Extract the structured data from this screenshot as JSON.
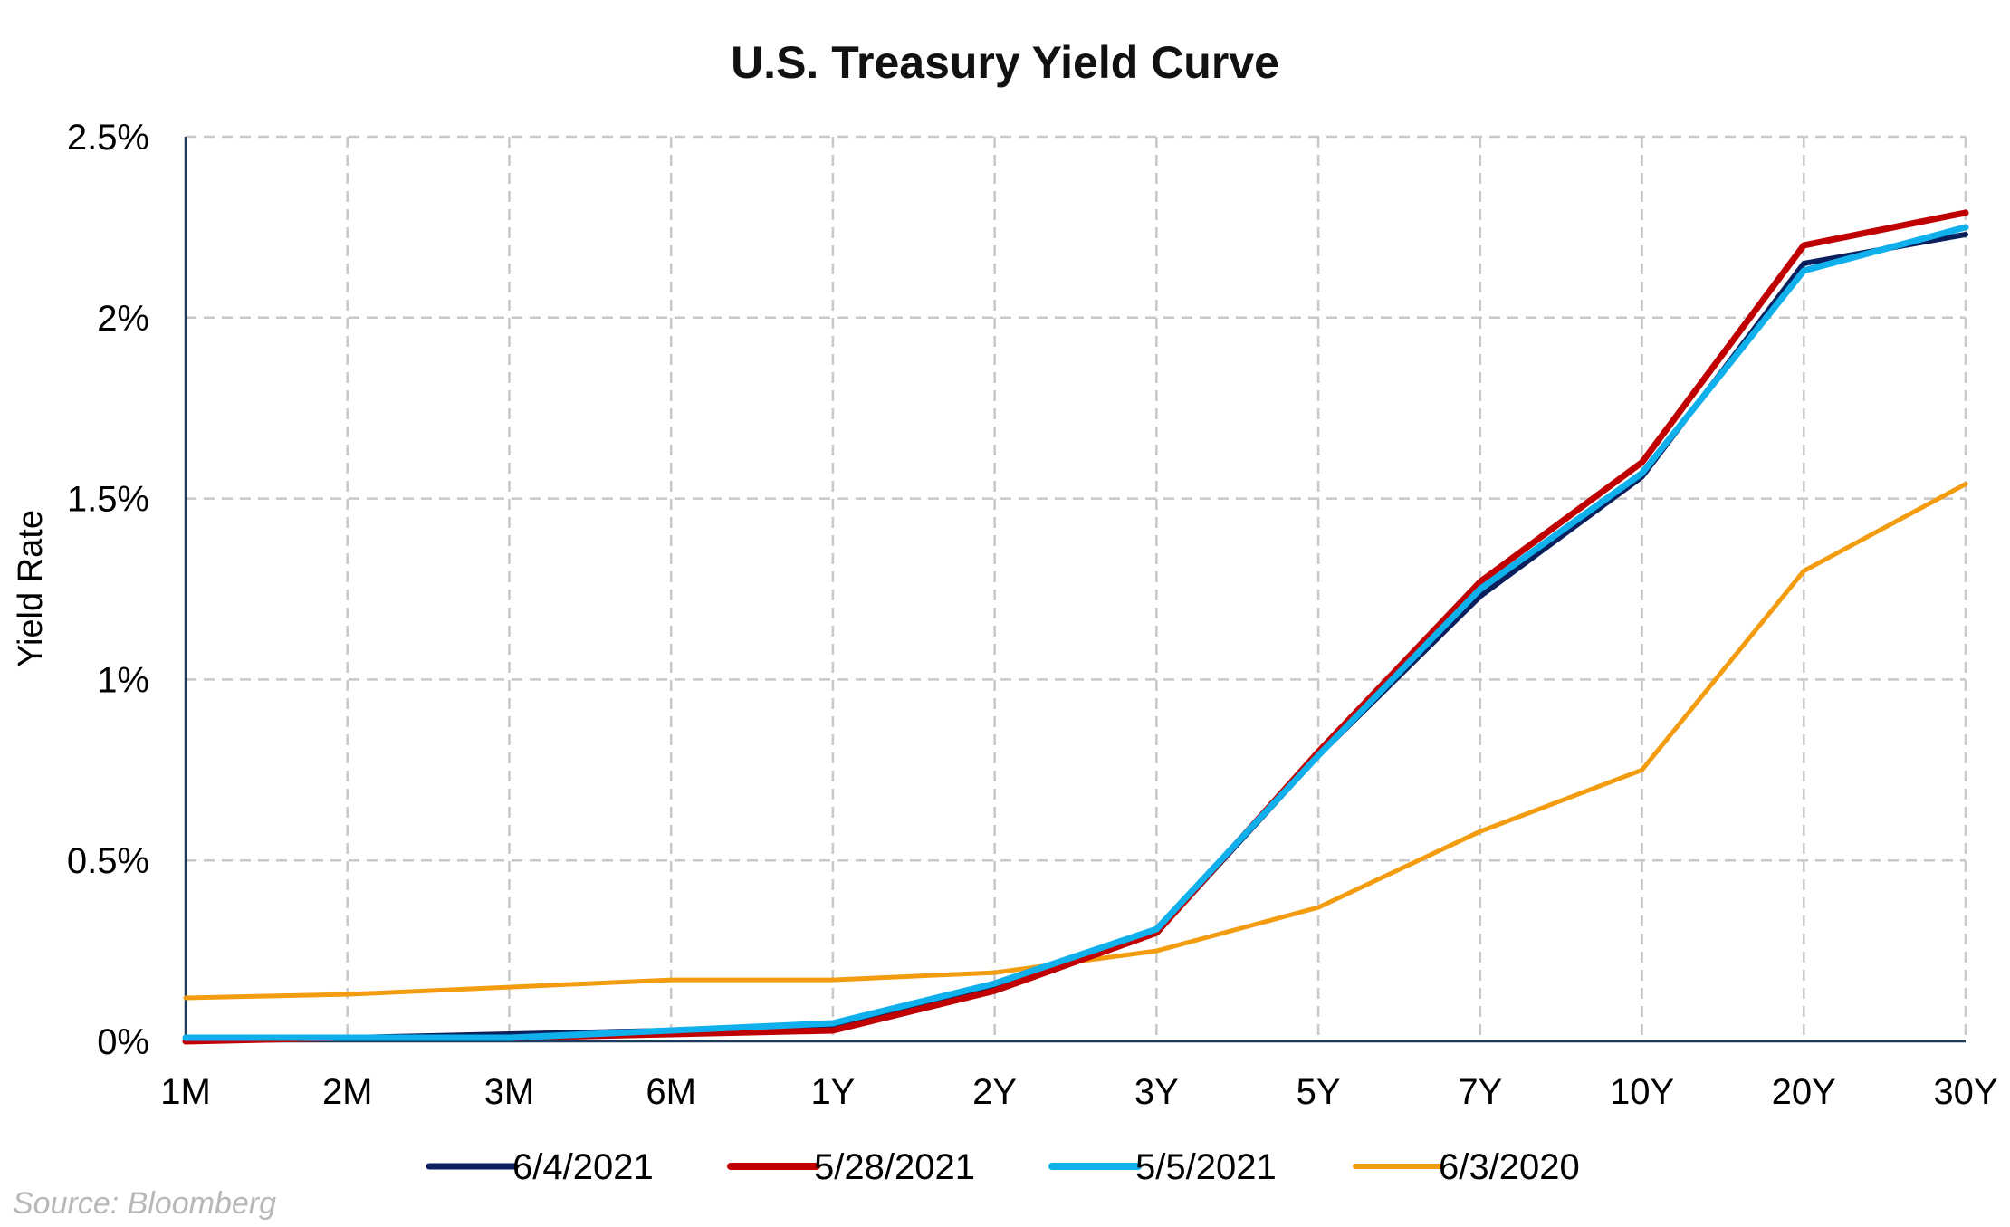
{
  "chart_data": {
    "type": "line",
    "title": "U.S. Treasury Yield Curve",
    "xlabel": "",
    "ylabel": "Yield Rate",
    "categories": [
      "1M",
      "2M",
      "3M",
      "6M",
      "1Y",
      "2Y",
      "3Y",
      "5Y",
      "7Y",
      "10Y",
      "20Y",
      "30Y"
    ],
    "ylim": [
      0,
      2.5
    ],
    "yticks": [
      0,
      0.5,
      1,
      1.5,
      2,
      2.5
    ],
    "ytick_labels": [
      "0%",
      "0.5%",
      "1%",
      "1.5%",
      "2%",
      "2.5%"
    ],
    "grid": true,
    "legend_position": "bottom",
    "series": [
      {
        "name": "6/4/2021",
        "color": "#0b1f5c",
        "values": [
          0.0,
          0.01,
          0.02,
          0.03,
          0.04,
          0.15,
          0.3,
          0.79,
          1.23,
          1.56,
          2.15,
          2.23
        ]
      },
      {
        "name": "5/28/2021",
        "color": "#c00000",
        "values": [
          0.0,
          0.01,
          0.01,
          0.02,
          0.03,
          0.14,
          0.3,
          0.8,
          1.27,
          1.6,
          2.2,
          2.29
        ]
      },
      {
        "name": "5/5/2021",
        "color": "#0fb0ec",
        "values": [
          0.01,
          0.01,
          0.01,
          0.03,
          0.05,
          0.16,
          0.31,
          0.79,
          1.25,
          1.57,
          2.13,
          2.25
        ]
      },
      {
        "name": "6/3/2020",
        "color": "#f39c0f",
        "values": [
          0.12,
          0.13,
          0.15,
          0.17,
          0.17,
          0.19,
          0.25,
          0.37,
          0.58,
          0.75,
          1.3,
          1.54
        ]
      }
    ]
  },
  "source_note": "Source: Bloomberg"
}
